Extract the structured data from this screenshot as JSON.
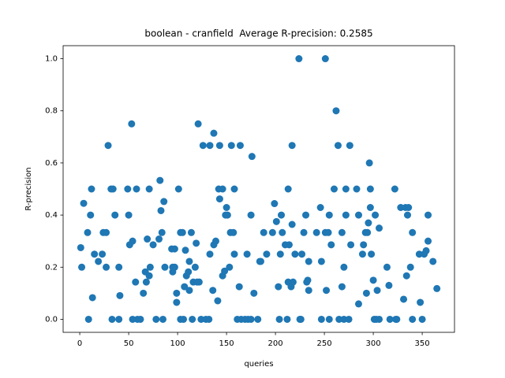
{
  "chart_data": {
    "type": "scatter",
    "title": "boolean - cranfield  Average R-precision: 0.2585",
    "xlabel": "queries",
    "ylabel": "R-precision",
    "color": "#1f77b4",
    "grid": false,
    "xlim": [
      -17,
      383
    ],
    "ylim": [
      -0.05,
      1.05
    ],
    "xticks": [
      0,
      50,
      100,
      150,
      200,
      250,
      300,
      350
    ],
    "yticks": [
      {
        "value": 0,
        "label": "0.0"
      },
      {
        "value": 0.2,
        "label": "0.2"
      },
      {
        "value": 0.4,
        "label": "0.4"
      },
      {
        "value": 0.6,
        "label": "0.6"
      },
      {
        "value": 0.8,
        "label": "0.8"
      },
      {
        "value": 1,
        "label": "1.0"
      }
    ],
    "x": [
      1,
      2,
      4,
      8,
      9,
      11,
      12,
      13,
      15,
      19,
      23,
      24,
      27,
      27,
      29,
      32,
      33,
      34,
      36,
      40,
      40,
      41,
      49,
      50,
      51,
      53,
      54,
      54,
      57,
      58,
      59,
      62,
      65,
      67,
      68,
      69,
      71,
      71,
      72,
      75,
      78,
      81,
      82,
      83,
      84,
      85,
      86,
      87,
      94,
      95,
      95,
      97,
      97,
      99,
      99,
      101,
      103,
      103,
      105,
      106,
      107,
      108,
      109,
      111,
      112,
      112,
      114,
      115,
      116,
      118,
      119,
      120,
      121,
      122,
      124,
      126,
      129,
      132,
      133,
      133,
      136,
      137,
      137,
      139,
      141,
      142,
      143,
      143,
      146,
      146,
      148,
      149,
      150,
      151,
      153,
      154,
      155,
      157,
      158,
      158,
      161,
      163,
      164,
      165,
      169,
      171,
      172,
      175,
      175,
      176,
      178,
      182,
      184,
      185,
      188,
      191,
      197,
      199,
      201,
      203,
      204,
      205,
      206,
      207,
      210,
      212,
      213,
      213,
      214,
      216,
      217,
      217,
      218,
      220,
      224,
      225,
      226,
      227,
      229,
      231,
      232,
      233,
      234,
      234,
      242,
      246,
      247,
      247,
      251,
      251,
      252,
      254,
      255,
      255,
      257,
      260,
      262,
      264,
      265,
      268,
      268,
      270,
      270,
      272,
      272,
      275,
      276,
      277,
      283,
      285,
      285,
      289,
      290,
      292,
      293,
      294,
      295,
      296,
      297,
      297,
      298,
      300,
      301,
      302,
      303,
      304,
      306,
      306,
      314,
      316,
      317,
      322,
      323,
      324,
      328,
      331,
      333,
      334,
      335,
      336,
      338,
      340,
      340,
      347,
      348,
      350,
      352,
      354,
      356,
      356,
      361,
      365
    ],
    "values": [
      0.275,
      0.2,
      0.445,
      0.333,
      0,
      0.4,
      0.5,
      0.083,
      0.25,
      0.222,
      0.25,
      0.333,
      0.2,
      0.333,
      0.667,
      0.5,
      0,
      0.5,
      0.4,
      0.2,
      0,
      0.091,
      0.5,
      0.4,
      0.286,
      0.75,
      0.3,
      0,
      0.143,
      0.5,
      0,
      0,
      0.1,
      0.182,
      0.143,
      0.308,
      0.5,
      0.167,
      0.2,
      0.286,
      0,
      0.308,
      0.533,
      0.417,
      0.333,
      0,
      0.452,
      0.2,
      0.27,
      0.2,
      0.182,
      0.27,
      0.2,
      0.065,
      0.1,
      0.5,
      0.333,
      0,
      0.333,
      0,
      0.125,
      0.265,
      0.167,
      0.182,
      0.222,
      0.111,
      0.333,
      0,
      0.143,
      0.2,
      0.292,
      0.143,
      0.75,
      0.143,
      0,
      0.667,
      0,
      0,
      0.25,
      0.667,
      0.111,
      0.714,
      0.286,
      0.3,
      0.071,
      0.5,
      0.667,
      0.462,
      0.5,
      0.167,
      0.185,
      0.4,
      0.429,
      0.4,
      0.2,
      0.333,
      0.667,
      0.333,
      0.25,
      0.5,
      0,
      0.125,
      0.667,
      0,
      0,
      0.25,
      0,
      0,
      0.4,
      0.625,
      0.1,
      0,
      0.222,
      0.222,
      0.333,
      0.25,
      0.333,
      0.444,
      0.375,
      0.125,
      0,
      0.25,
      0.4,
      0.333,
      0.286,
      0,
      0.5,
      0.143,
      0.286,
      0.125,
      0.667,
      0.364,
      0.143,
      0.25,
      1,
      0,
      0,
      0.25,
      0.333,
      0.4,
      0.143,
      0.15,
      0.222,
      0.111,
      0.333,
      0.429,
      0.222,
      0,
      0.333,
      1,
      0.111,
      0.333,
      0,
      0.4,
      0.286,
      0.5,
      0.8,
      0.667,
      0,
      0.125,
      0.333,
      0.2,
      0,
      0.5,
      0.4,
      0,
      0.667,
      0.286,
      0.5,
      0.4,
      0.059,
      0.25,
      0.286,
      0.333,
      0.1,
      0.333,
      0.37,
      0.6,
      0.5,
      0.429,
      0.25,
      0.15,
      0,
      0.4,
      0,
      0.111,
      0,
      0.35,
      0.2,
      0.13,
      0,
      0.5,
      0,
      0,
      0.429,
      0.077,
      0.429,
      0.167,
      0.4,
      0.429,
      0.2,
      0.333,
      0,
      0.25,
      0.065,
      0,
      0.25,
      0.263,
      0.3,
      0.4,
      0.222,
      0.118
    ]
  }
}
